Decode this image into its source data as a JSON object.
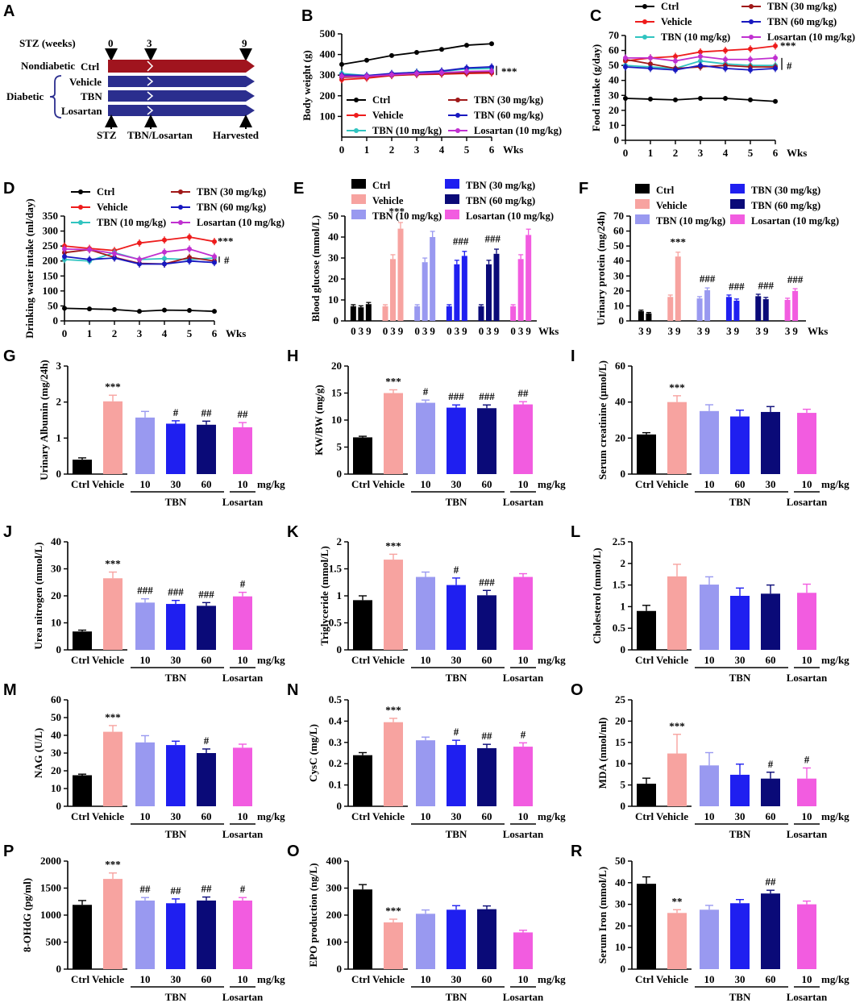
{
  "colors": {
    "ctrl": "#000000",
    "vehicle": "#f7a3a0",
    "tbn10": "#9999f0",
    "tbn30": "#1f1ff0",
    "tbn60": "#0a0a78",
    "losartan": "#f25ce0",
    "l_ctrl": "#000000",
    "l_vehicle": "#ee1c1c",
    "l_tbn10": "#30c4c0",
    "l_tbn30": "#a01818",
    "l_tbn60": "#1818c0",
    "l_losartan": "#c030d0",
    "arrow_ctrl": "#a0141e",
    "arrow_diab": "#2b2e8e"
  },
  "panelA": {
    "label": "A",
    "stz_weeks": "STZ (weeks)",
    "t0": "0",
    "t3": "3",
    "t9": "9",
    "nondiabetic": "Nondiabetic",
    "diabetic": "Diabetic",
    "groups": [
      "Ctrl",
      "Vehicle",
      "TBN",
      "Losartan"
    ],
    "events": [
      "STZ",
      "TBN/Losartan",
      "Harvested"
    ]
  },
  "line_legend": [
    "Ctrl",
    "Vehicle",
    "TBN (10 mg/kg)",
    "TBN (30 mg/kg)",
    "TBN (60 mg/kg)",
    "Losartan (10 mg/kg)"
  ],
  "bar_legend": [
    "Ctrl",
    "Vehicle",
    "TBN (10 mg/kg)",
    "TBN (30 mg/kg)",
    "TBN (60 mg/kg)",
    "Losartan (10 mg/kg)"
  ],
  "chart_data": [
    {
      "id": "B",
      "type": "line",
      "ylabel": "Body weight (g)",
      "xlabel": "Wks",
      "x": [
        0,
        1,
        2,
        3,
        4,
        5,
        6
      ],
      "ylim": [
        0,
        500
      ],
      "yticks": [
        100,
        200,
        300,
        400,
        500
      ],
      "series": [
        {
          "name": "Ctrl",
          "values": [
            352,
            372,
            395,
            410,
            425,
            445,
            452
          ]
        },
        {
          "name": "Vehicle",
          "values": [
            278,
            285,
            298,
            303,
            305,
            308,
            310
          ]
        },
        {
          "name": "TBN (10 mg/kg)",
          "values": [
            308,
            298,
            305,
            315,
            318,
            330,
            332
          ]
        },
        {
          "name": "TBN (30 mg/kg)",
          "values": [
            290,
            292,
            300,
            305,
            308,
            312,
            315
          ]
        },
        {
          "name": "TBN (60 mg/kg)",
          "values": [
            300,
            298,
            308,
            313,
            320,
            335,
            340
          ]
        },
        {
          "name": "Losartan (10 mg/kg)",
          "values": [
            295,
            294,
            302,
            308,
            312,
            318,
            320
          ]
        }
      ],
      "annotations": [
        "***"
      ]
    },
    {
      "id": "C",
      "type": "line",
      "ylabel": "Food intake (g/day)",
      "xlabel": "Wks",
      "x": [
        0,
        1,
        2,
        3,
        4,
        5,
        6
      ],
      "ylim": [
        0,
        70
      ],
      "yticks": [
        0,
        10,
        20,
        30,
        40,
        50,
        60,
        70
      ],
      "series": [
        {
          "name": "Ctrl",
          "values": [
            28,
            27.5,
            27,
            28,
            28,
            27,
            26
          ]
        },
        {
          "name": "Vehicle",
          "values": [
            53,
            55,
            56,
            59,
            60,
            61,
            63
          ]
        },
        {
          "name": "TBN (10 mg/kg)",
          "values": [
            50,
            49,
            48,
            53,
            51,
            50,
            50
          ]
        },
        {
          "name": "TBN (30 mg/kg)",
          "values": [
            54,
            51,
            48,
            49,
            50,
            49,
            49
          ]
        },
        {
          "name": "TBN (60 mg/kg)",
          "values": [
            49,
            48,
            47,
            50,
            48,
            47,
            48
          ]
        },
        {
          "name": "Losartan (10 mg/kg)",
          "values": [
            55,
            55,
            53,
            56,
            54,
            54,
            55
          ]
        }
      ],
      "annotations": [
        "***",
        "#"
      ]
    },
    {
      "id": "D",
      "type": "line",
      "ylabel": "Drinking water intake (ml/day)",
      "xlabel": "Wks",
      "x": [
        0,
        1,
        2,
        3,
        4,
        5,
        6
      ],
      "ylim": [
        0,
        350
      ],
      "yticks": [
        0,
        50,
        100,
        150,
        200,
        250,
        300,
        350
      ],
      "series": [
        {
          "name": "Ctrl",
          "values": [
            42,
            40,
            38,
            32,
            36,
            35,
            32
          ]
        },
        {
          "name": "Vehicle",
          "values": [
            250,
            242,
            235,
            260,
            270,
            280,
            265
          ]
        },
        {
          "name": "TBN (10 mg/kg)",
          "values": [
            205,
            200,
            228,
            205,
            208,
            205,
            210
          ]
        },
        {
          "name": "TBN (30 mg/kg)",
          "values": [
            228,
            238,
            212,
            192,
            190,
            212,
            200
          ]
        },
        {
          "name": "TBN (60 mg/kg)",
          "values": [
            215,
            205,
            210,
            190,
            190,
            200,
            195
          ]
        },
        {
          "name": "Losartan (10 mg/kg)",
          "values": [
            240,
            238,
            225,
            205,
            230,
            240,
            215
          ]
        }
      ],
      "annotations": [
        "***",
        "#"
      ]
    },
    {
      "id": "E",
      "type": "bar",
      "ylabel": "Blood glucose (mmol/L)",
      "xlabel": "Wks",
      "ylim": [
        0,
        50
      ],
      "yticks": [
        0,
        10,
        20,
        30,
        40,
        50
      ],
      "group_ticks": [
        "0",
        "3",
        "9"
      ],
      "series": [
        {
          "name": "Ctrl",
          "values": [
            7,
            6.5,
            8
          ]
        },
        {
          "name": "Vehicle",
          "values": [
            7,
            29.5,
            44
          ]
        },
        {
          "name": "TBN (10 mg/kg)",
          "values": [
            7,
            28,
            40
          ]
        },
        {
          "name": "TBN (30 mg/kg)",
          "values": [
            7,
            27,
            31
          ]
        },
        {
          "name": "TBN (60 mg/kg)",
          "values": [
            7,
            27,
            32
          ]
        },
        {
          "name": "Losartan (10 mg/kg)",
          "values": [
            7,
            29.5,
            41
          ]
        }
      ],
      "annotations": [
        "***",
        "###",
        "###"
      ]
    },
    {
      "id": "F",
      "type": "bar",
      "ylabel": "Urinary protein (mg/24h)",
      "xlabel": "Wks",
      "ylim": [
        0,
        70
      ],
      "yticks": [
        0,
        10,
        20,
        30,
        40,
        50,
        60,
        70
      ],
      "group_ticks": [
        "3",
        "9"
      ],
      "series": [
        {
          "name": "Ctrl",
          "values": [
            6.5,
            5
          ]
        },
        {
          "name": "Vehicle",
          "values": [
            16,
            43
          ]
        },
        {
          "name": "TBN (10 mg/kg)",
          "values": [
            15,
            20.5
          ]
        },
        {
          "name": "TBN (30 mg/kg)",
          "values": [
            16,
            13.5
          ]
        },
        {
          "name": "TBN (60 mg/kg)",
          "values": [
            16.5,
            14.5
          ]
        },
        {
          "name": "Losartan (10 mg/kg)",
          "values": [
            14,
            20
          ]
        }
      ],
      "annotations": [
        "***",
        "###",
        "###",
        "###",
        "###"
      ]
    },
    {
      "id": "G",
      "type": "bar",
      "ylabel": "Urinary Albumin (mg/24h)",
      "ylim": [
        0,
        3
      ],
      "yticks": [
        0,
        1,
        2,
        3
      ],
      "categories": [
        "Ctrl",
        "Vehicle",
        "10",
        "30",
        "60",
        "10"
      ],
      "values": [
        0.4,
        2.02,
        1.57,
        1.4,
        1.37,
        1.3
      ],
      "errors": [
        0.05,
        0.17,
        0.17,
        0.08,
        0.1,
        0.13
      ],
      "annotations": [
        "",
        "***",
        "",
        "#",
        "##",
        "##"
      ],
      "group_labels": [
        "TBN",
        "Losartan"
      ],
      "unit": "mg/kg"
    },
    {
      "id": "H",
      "type": "bar",
      "ylabel": "KW/BW (mg/g)",
      "ylim": [
        0,
        20
      ],
      "yticks": [
        0,
        5,
        10,
        15,
        20
      ],
      "categories": [
        "Ctrl",
        "Vehicle",
        "10",
        "30",
        "60",
        "10"
      ],
      "values": [
        6.8,
        15,
        13.2,
        12.3,
        12.2,
        12.9
      ],
      "errors": [
        0.2,
        0.6,
        0.5,
        0.5,
        0.6,
        0.5
      ],
      "annotations": [
        "",
        "***",
        "#",
        "###",
        "###",
        "##"
      ],
      "group_labels": [
        "TBN",
        "Losartan"
      ],
      "unit": "mg/kg"
    },
    {
      "id": "I",
      "type": "bar",
      "ylabel": "Serum creatinine (μmol/L)",
      "ylim": [
        0,
        60
      ],
      "yticks": [
        0,
        20,
        40,
        60
      ],
      "categories": [
        "Ctrl",
        "Vehicle",
        "10",
        "60",
        "30",
        "10"
      ],
      "values": [
        22,
        40,
        35,
        32,
        34.5,
        34
      ],
      "errors": [
        1,
        3.5,
        3.5,
        3.5,
        3,
        2
      ],
      "annotations": [
        "",
        "***",
        "",
        "",
        "",
        ""
      ],
      "group_labels": [
        "TBN",
        "Losartan"
      ],
      "unit": "mg/kg"
    },
    {
      "id": "J",
      "type": "bar",
      "ylabel": "Urea nitrogen (mmol/L)",
      "ylim": [
        0,
        40
      ],
      "yticks": [
        0,
        10,
        20,
        30,
        40
      ],
      "categories": [
        "Ctrl",
        "Vehicle",
        "10",
        "30",
        "60",
        "10"
      ],
      "values": [
        6.8,
        26.5,
        17.5,
        17,
        16.3,
        19.8
      ],
      "errors": [
        0.5,
        2.3,
        1.4,
        1.3,
        1.2,
        1.5
      ],
      "annotations": [
        "",
        "***",
        "###",
        "###",
        "###",
        "#"
      ],
      "group_labels": [
        "TBN",
        "Losartan"
      ],
      "unit": "mg/kg"
    },
    {
      "id": "K",
      "type": "bar",
      "ylabel": "Triglyceride (mmol/L)",
      "ylim": [
        0,
        2.0
      ],
      "yticks": [
        0,
        0.5,
        1.0,
        1.5,
        2.0
      ],
      "categories": [
        "Ctrl",
        "Vehicle",
        "10",
        "30",
        "60",
        "10"
      ],
      "values": [
        0.92,
        1.67,
        1.35,
        1.2,
        1.01,
        1.35
      ],
      "errors": [
        0.08,
        0.1,
        0.09,
        0.13,
        0.09,
        0.06
      ],
      "annotations": [
        "",
        "***",
        "",
        "#",
        "###",
        ""
      ],
      "group_labels": [
        "TBN",
        "Losartan"
      ],
      "unit": "mg/kg"
    },
    {
      "id": "L",
      "type": "bar",
      "ylabel": "Cholesterol (mmol/L)",
      "ylim": [
        0,
        2.5
      ],
      "yticks": [
        0,
        0.5,
        1.0,
        1.5,
        2.0,
        2.5
      ],
      "categories": [
        "Ctrl",
        "Vehicle",
        "10",
        "30",
        "60",
        "10"
      ],
      "values": [
        0.9,
        1.7,
        1.51,
        1.25,
        1.3,
        1.32
      ],
      "errors": [
        0.13,
        0.28,
        0.18,
        0.18,
        0.2,
        0.2
      ],
      "annotations": [
        "",
        "",
        "",
        "",
        "",
        ""
      ],
      "group_labels": [
        "TBN",
        "Losartan"
      ],
      "unit": "mg/kg"
    },
    {
      "id": "M",
      "type": "bar",
      "ylabel": "NAG (U/L)",
      "ylim": [
        0,
        60
      ],
      "yticks": [
        0,
        10,
        20,
        30,
        40,
        50,
        60
      ],
      "categories": [
        "Ctrl",
        "Vehicle",
        "10",
        "30",
        "60",
        "10"
      ],
      "values": [
        17.5,
        42,
        36,
        34.5,
        30,
        33
      ],
      "errors": [
        0.6,
        3.5,
        3.8,
        2.2,
        2.3,
        2
      ],
      "annotations": [
        "",
        "***",
        "",
        "",
        "#",
        ""
      ],
      "group_labels": [
        "TBN",
        "Losartan"
      ],
      "unit": "mg/kg"
    },
    {
      "id": "N",
      "type": "bar",
      "ylabel": "CysC (mg/L)",
      "ylim": [
        0,
        0.5
      ],
      "yticks": [
        0,
        0.1,
        0.2,
        0.3,
        0.4,
        0.5
      ],
      "categories": [
        "Ctrl",
        "Vehicle",
        "10",
        "30",
        "60",
        "10"
      ],
      "values": [
        0.24,
        0.395,
        0.31,
        0.288,
        0.273,
        0.28
      ],
      "errors": [
        0.012,
        0.018,
        0.015,
        0.022,
        0.018,
        0.018
      ],
      "annotations": [
        "",
        "***",
        "",
        "#",
        "##",
        "#"
      ],
      "group_labels": [
        "TBN",
        "Losartan"
      ],
      "unit": "mg/kg"
    },
    {
      "id": "O",
      "type": "bar",
      "ylabel": "MDA (nmol/ml)",
      "ylim": [
        0,
        25
      ],
      "yticks": [
        0,
        5,
        10,
        15,
        20,
        25
      ],
      "categories": [
        "Ctrl",
        "Vehicle",
        "10",
        "30",
        "60",
        "10"
      ],
      "values": [
        5.3,
        12.4,
        9.6,
        7.4,
        6.5,
        6.5
      ],
      "errors": [
        1.3,
        4.5,
        3,
        2.5,
        1.5,
        2.5
      ],
      "annotations": [
        "",
        "***",
        "",
        "",
        "#",
        "#"
      ],
      "group_labels": [
        "TBN",
        "Losartan"
      ],
      "unit": "mg/kg"
    },
    {
      "id": "P",
      "type": "bar",
      "ylabel": "8-OHdG (pg/ml)",
      "ylim": [
        0,
        2000
      ],
      "yticks": [
        0,
        500,
        1000,
        1500,
        2000
      ],
      "categories": [
        "Ctrl",
        "Vehicle",
        "10",
        "30",
        "60",
        "10"
      ],
      "values": [
        1190,
        1670,
        1270,
        1220,
        1270,
        1270
      ],
      "errors": [
        80,
        110,
        55,
        80,
        65,
        55
      ],
      "annotations": [
        "",
        "***",
        "##",
        "##",
        "##",
        "#"
      ],
      "group_labels": [
        "TBN",
        "Losartan"
      ],
      "unit": "mg/kg"
    },
    {
      "id": "O2",
      "type": "bar",
      "ylabel": "EPO production (ng/L)",
      "ylim": [
        0,
        400
      ],
      "yticks": [
        0,
        100,
        200,
        300,
        400
      ],
      "categories": [
        "Ctrl",
        "Vehicle",
        "10",
        "30",
        "60",
        "10"
      ],
      "values": [
        295,
        173,
        205,
        220,
        222,
        136
      ],
      "errors": [
        18,
        12,
        14,
        15,
        12,
        8
      ],
      "annotations": [
        "",
        "***",
        "",
        "",
        "",
        ""
      ],
      "group_labels": [
        "TBN",
        "Losartan"
      ],
      "unit": "mg/kg"
    },
    {
      "id": "R",
      "type": "bar",
      "ylabel": "Serum Iron (mmol/L)",
      "ylim": [
        0,
        50
      ],
      "yticks": [
        0,
        10,
        20,
        30,
        40,
        50
      ],
      "categories": [
        "Ctrl",
        "Vehicle",
        "10",
        "30",
        "60",
        "10"
      ],
      "values": [
        39.5,
        26,
        27.5,
        30.5,
        35,
        30
      ],
      "errors": [
        3.2,
        1.5,
        2,
        1.7,
        1.5,
        1.5
      ],
      "annotations": [
        "",
        "**",
        "",
        "",
        "##",
        ""
      ],
      "group_labels": [
        "TBN",
        "Losartan"
      ],
      "unit": "mg/kg"
    }
  ],
  "panel_labels": {
    "B": "B",
    "C": "C",
    "D": "D",
    "E": "E",
    "F": "F",
    "G": "G",
    "H": "H",
    "I": "I",
    "J": "J",
    "K": "K",
    "L": "L",
    "M": "M",
    "N": "N",
    "O": "O",
    "P": "P",
    "O2": "O",
    "R": "R"
  }
}
